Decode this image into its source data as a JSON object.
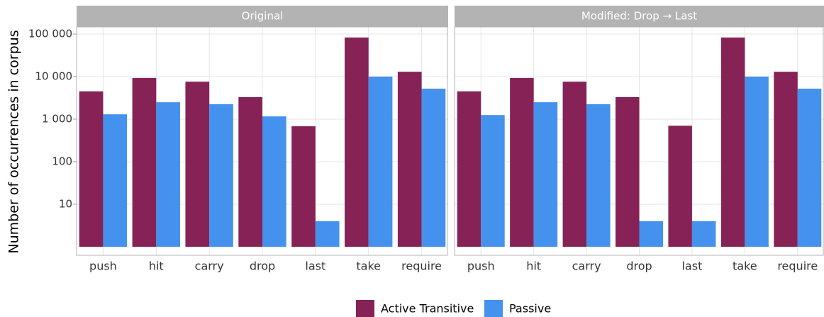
{
  "chart_data": {
    "type": "bar",
    "log_scale": true,
    "grid": true,
    "legend": "bottom",
    "ylabel": "Number of occurrences in corpus",
    "ylim": [
      0.63,
      147000
    ],
    "yticks": [
      10,
      100,
      {
        "value": 1000,
        "label": "1 000"
      },
      {
        "value": 10000,
        "label": "10 000"
      },
      {
        "value": 100000,
        "label": "100 000"
      }
    ],
    "categories": [
      "push",
      "hit",
      "carry",
      "drop",
      "last",
      "take",
      "require"
    ],
    "series": [
      {
        "name": "Active Transitive",
        "color": "#862256"
      },
      {
        "name": "Passive",
        "color": "#4591ee"
      }
    ],
    "panels": [
      {
        "title": "Original",
        "values": [
          [
            4500,
            9300,
            7600,
            3300,
            680,
            83000,
            13000
          ],
          [
            1300,
            2500,
            2250,
            1160,
            4,
            10000,
            5200
          ]
        ]
      },
      {
        "title": "Modified: Drop → Last",
        "values": [
          [
            4500,
            9300,
            7600,
            3300,
            700,
            83000,
            13000
          ],
          [
            1250,
            2500,
            2250,
            4,
            4,
            10000,
            5200
          ]
        ]
      }
    ]
  }
}
